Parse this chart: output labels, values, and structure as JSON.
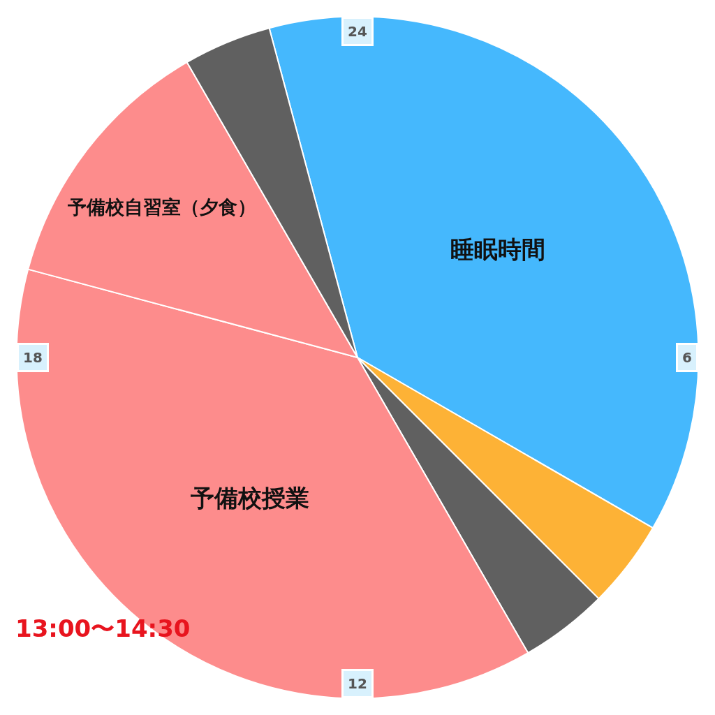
{
  "chart_data": {
    "type": "pie",
    "categories": [
      "睡眠時間",
      null,
      null,
      "予備校授業",
      "予備校自習室（夕食）",
      null
    ],
    "values": [
      37.5,
      4.17,
      4.17,
      37.5,
      12.5,
      4.17
    ],
    "colors": [
      "#45b8fd",
      "#fdb236",
      "#606060",
      "#fd8c8c",
      "#fd8c8c",
      "#606060"
    ],
    "annotations": [
      "24",
      "6",
      "12",
      "18",
      "13:00〜14:30"
    ],
    "legend": false
  }
}
